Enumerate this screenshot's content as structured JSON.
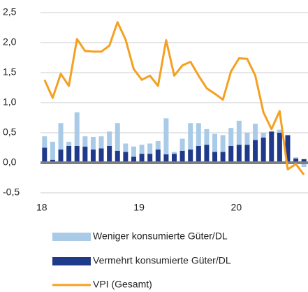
{
  "chart_data": {
    "type": "bar_line",
    "categories": [
      "18",
      null,
      null,
      null,
      null,
      null,
      null,
      null,
      null,
      null,
      null,
      null,
      "19",
      null,
      null,
      null,
      null,
      null,
      null,
      null,
      null,
      null,
      null,
      null,
      "20",
      null,
      null,
      null,
      null,
      null,
      null,
      null,
      null
    ],
    "series": [
      {
        "name": "Weniger konsumierte Güter/DL",
        "color": "#a9cbe8",
        "kind": "bar",
        "values": [
          0.19,
          0.3,
          0.44,
          0.07,
          0.56,
          0.17,
          0.21,
          0.2,
          0.24,
          0.46,
          0.14,
          0.17,
          0.15,
          0.17,
          0.14,
          0.6,
          0.03,
          0.2,
          0.44,
          0.38,
          0.26,
          0.3,
          0.28,
          0.3,
          0.4,
          0.2,
          0.27,
          0.08,
          0.0,
          0.05,
          0.0,
          0.02,
          -0.07
        ]
      },
      {
        "name": "Vermehrt konsumierte Güter/DL",
        "color": "#1f3a8a",
        "kind": "bar",
        "values": [
          0.25,
          0.05,
          0.22,
          0.28,
          0.28,
          0.27,
          0.22,
          0.24,
          0.28,
          0.2,
          0.18,
          0.1,
          0.15,
          0.15,
          0.22,
          0.14,
          0.15,
          0.2,
          0.22,
          0.28,
          0.3,
          0.18,
          0.18,
          0.28,
          0.3,
          0.3,
          0.38,
          0.42,
          0.52,
          0.5,
          0.46,
          0.07,
          0.06
        ]
      },
      {
        "name": "VPI (Gesamt)",
        "color": "#f5a021",
        "kind": "line",
        "values": [
          1.38,
          1.08,
          1.48,
          1.28,
          2.06,
          1.86,
          1.85,
          1.85,
          1.95,
          2.34,
          2.05,
          1.56,
          1.38,
          1.45,
          1.28,
          2.04,
          1.45,
          1.62,
          1.68,
          1.45,
          1.24,
          1.15,
          1.05,
          1.52,
          1.74,
          1.73,
          1.45,
          0.84,
          0.56,
          0.86,
          -0.11,
          -0.02,
          -0.2
        ]
      }
    ],
    "ylim": [
      -0.5,
      2.5
    ],
    "yticks": [
      {
        "value": -0.5,
        "label": "-0,5"
      },
      {
        "value": 0,
        "label": "0,0"
      },
      {
        "value": 0.5,
        "label": "0,5"
      },
      {
        "value": 1,
        "label": "1,0"
      },
      {
        "value": 1.5,
        "label": "1,5"
      },
      {
        "value": 2,
        "label": "2,0"
      },
      {
        "value": 2.5,
        "label": "2,5"
      }
    ],
    "grid": true
  }
}
